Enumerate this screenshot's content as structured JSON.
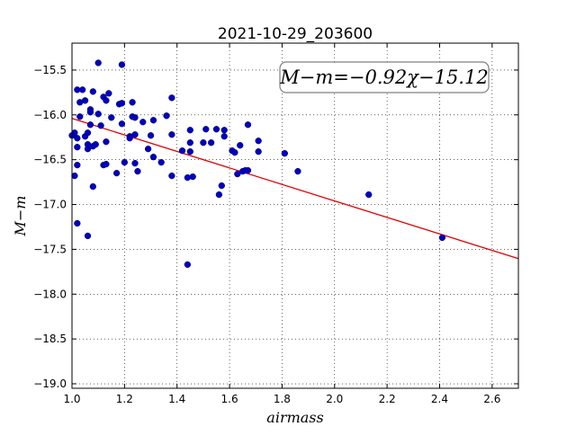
{
  "chart_data": {
    "type": "scatter",
    "title": "2021-10-29_203600",
    "xlabel": "airmass",
    "ylabel": "M−m",
    "xlim": [
      1.0,
      2.7
    ],
    "ylim": [
      -19.05,
      -15.2
    ],
    "xticks": [
      "1.0",
      "1.2",
      "1.4",
      "1.6",
      "1.8",
      "2.0",
      "2.2",
      "2.4",
      "2.6"
    ],
    "xtick_values": [
      1.0,
      1.2,
      1.4,
      1.6,
      1.8,
      2.0,
      2.2,
      2.4,
      2.6
    ],
    "yticks": [
      "−15.5",
      "−16.0",
      "−16.5",
      "−17.0",
      "−17.5",
      "−18.0",
      "−18.5",
      "−19.0"
    ],
    "ytick_values": [
      -15.5,
      -16.0,
      -16.5,
      -17.0,
      -17.5,
      -18.0,
      -18.5,
      -19.0
    ],
    "grid": true,
    "point_color": "#0000bf",
    "line_color": "#e00000",
    "fit_line": {
      "slope": -0.92,
      "intercept": -15.12
    },
    "annotation": {
      "text": "M−m=−0.92χ−15.12",
      "placement": "top-right"
    },
    "points": [
      [
        1.0,
        -16.23
      ],
      [
        1.01,
        -16.2
      ],
      [
        1.02,
        -16.56
      ],
      [
        1.01,
        -16.68
      ],
      [
        1.02,
        -16.36
      ],
      [
        1.02,
        -16.26
      ],
      [
        1.02,
        -15.72
      ],
      [
        1.04,
        -15.72
      ],
      [
        1.03,
        -15.86
      ],
      [
        1.03,
        -16.02
      ],
      [
        1.05,
        -15.84
      ],
      [
        1.05,
        -16.24
      ],
      [
        1.06,
        -16.2
      ],
      [
        1.06,
        -16.33
      ],
      [
        1.06,
        -16.38
      ],
      [
        1.02,
        -17.21
      ],
      [
        1.06,
        -17.35
      ],
      [
        1.07,
        -15.94
      ],
      [
        1.07,
        -15.97
      ],
      [
        1.07,
        -16.11
      ],
      [
        1.08,
        -15.74
      ],
      [
        1.08,
        -16.35
      ],
      [
        1.09,
        -16.33
      ],
      [
        1.08,
        -16.8
      ],
      [
        1.1,
        -15.42
      ],
      [
        1.1,
        -15.99
      ],
      [
        1.11,
        -16.12
      ],
      [
        1.12,
        -15.8
      ],
      [
        1.13,
        -15.84
      ],
      [
        1.14,
        -15.76
      ],
      [
        1.12,
        -16.56
      ],
      [
        1.13,
        -16.55
      ],
      [
        1.13,
        -16.3
      ],
      [
        1.15,
        -16.03
      ],
      [
        1.17,
        -16.65
      ],
      [
        1.18,
        -15.88
      ],
      [
        1.19,
        -15.87
      ],
      [
        1.19,
        -15.44
      ],
      [
        1.19,
        -16.1
      ],
      [
        1.2,
        -16.53
      ],
      [
        1.22,
        -16.24
      ],
      [
        1.22,
        -16.26
      ],
      [
        1.23,
        -15.86
      ],
      [
        1.23,
        -16.02
      ],
      [
        1.24,
        -16.03
      ],
      [
        1.24,
        -16.22
      ],
      [
        1.24,
        -16.54
      ],
      [
        1.25,
        -16.63
      ],
      [
        1.27,
        -16.08
      ],
      [
        1.29,
        -16.38
      ],
      [
        1.3,
        -16.23
      ],
      [
        1.31,
        -16.06
      ],
      [
        1.31,
        -16.47
      ],
      [
        1.34,
        -16.53
      ],
      [
        1.36,
        -16.01
      ],
      [
        1.38,
        -15.81
      ],
      [
        1.38,
        -16.22
      ],
      [
        1.38,
        -16.68
      ],
      [
        1.42,
        -16.4
      ],
      [
        1.44,
        -17.67
      ],
      [
        1.44,
        -16.7
      ],
      [
        1.45,
        -16.17
      ],
      [
        1.45,
        -16.41
      ],
      [
        1.45,
        -16.31
      ],
      [
        1.46,
        -16.69
      ],
      [
        1.5,
        -16.31
      ],
      [
        1.51,
        -16.16
      ],
      [
        1.53,
        -16.31
      ],
      [
        1.55,
        -16.16
      ],
      [
        1.56,
        -16.89
      ],
      [
        1.57,
        -16.79
      ],
      [
        1.58,
        -16.17
      ],
      [
        1.58,
        -16.24
      ],
      [
        1.61,
        -16.4
      ],
      [
        1.62,
        -16.42
      ],
      [
        1.63,
        -16.66
      ],
      [
        1.64,
        -16.34
      ],
      [
        1.65,
        -16.63
      ],
      [
        1.66,
        -16.62
      ],
      [
        1.67,
        -16.11
      ],
      [
        1.67,
        -16.62
      ],
      [
        1.71,
        -16.29
      ],
      [
        1.71,
        -16.41
      ],
      [
        1.81,
        -16.43
      ],
      [
        1.86,
        -16.63
      ],
      [
        2.13,
        -16.89
      ],
      [
        2.41,
        -17.37
      ]
    ]
  }
}
